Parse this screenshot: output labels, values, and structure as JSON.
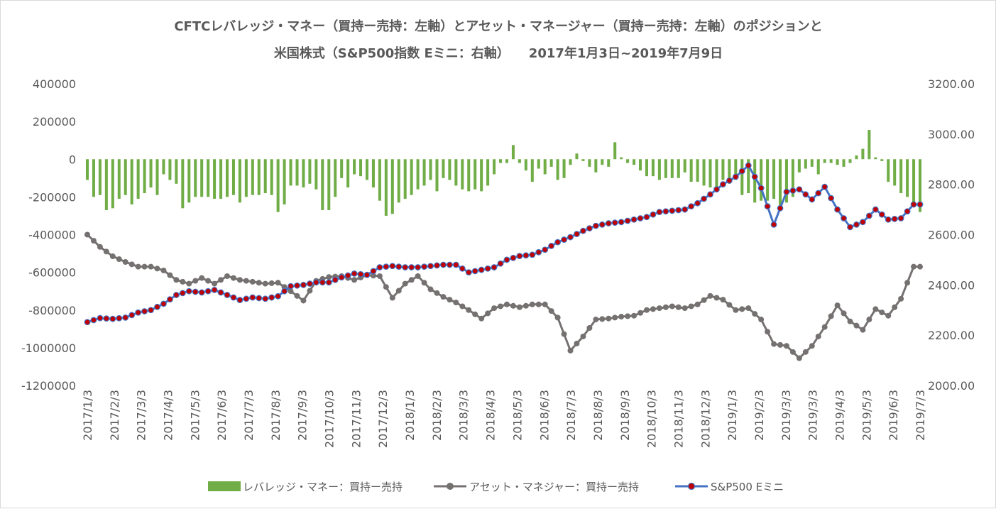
{
  "chart_data": {
    "type": "bar+line",
    "title_line1": "CFTCレバレッジ・マネー（買持ー売持：左軸）とアセット・マネージャー（買持ー売持：左軸）のポジションと",
    "title_line2": "米国株式（S&P500指数 Eミニ：右軸）　　2017年1月3日~2019年7月9日",
    "y_left_ticks": [
      "400000",
      "200000",
      "0",
      "-200000",
      "-400000",
      "-600000",
      "-800000",
      "-1000000",
      "-1200000"
    ],
    "ylim_left": [
      -1200000,
      400000
    ],
    "y_right_ticks": [
      "3200.00",
      "3000.00",
      "2800.00",
      "2600.00",
      "2400.00",
      "2200.00",
      "2000.00"
    ],
    "ylim_right": [
      2000,
      3200
    ],
    "x_tick_labels": [
      "2017/1/3",
      "2017/2/3",
      "2017/3/3",
      "2017/4/3",
      "2017/5/3",
      "2017/6/3",
      "2017/7/3",
      "2017/8/3",
      "2017/9/3",
      "2017/10/3",
      "2017/11/3",
      "2017/12/3",
      "2018/1/3",
      "2018/2/3",
      "2018/3/3",
      "2018/4/3",
      "2018/5/3",
      "2018/6/3",
      "2018/7/3",
      "2018/8/3",
      "2018/9/3",
      "2018/10/3",
      "2018/11/3",
      "2018/12/3",
      "2019/1/3",
      "2019/2/3",
      "2019/3/3",
      "2019/3/3",
      "2019/4/3",
      "2019/5/3",
      "2019/6/3",
      "2019/7/3"
    ],
    "n_points": 132,
    "series": [
      {
        "name": "レバレッジ・マネー：買持ー売持",
        "kind": "bar",
        "axis": "left",
        "color": "#70ad47",
        "anchors": [
          [
            0,
            -110000
          ],
          [
            1,
            -200000
          ],
          [
            2,
            -190000
          ],
          [
            3,
            -270000
          ],
          [
            4,
            -260000
          ],
          [
            5,
            -210000
          ],
          [
            6,
            -190000
          ],
          [
            7,
            -240000
          ],
          [
            8,
            -210000
          ],
          [
            9,
            -180000
          ],
          [
            10,
            -150000
          ],
          [
            11,
            -190000
          ],
          [
            12,
            -80000
          ],
          [
            13,
            -110000
          ],
          [
            14,
            -130000
          ],
          [
            15,
            -260000
          ],
          [
            16,
            -230000
          ],
          [
            17,
            -200000
          ],
          [
            18,
            -200000
          ],
          [
            19,
            -200000
          ],
          [
            20,
            -210000
          ],
          [
            21,
            -210000
          ],
          [
            22,
            -200000
          ],
          [
            23,
            -190000
          ],
          [
            24,
            -230000
          ],
          [
            25,
            -200000
          ],
          [
            26,
            -190000
          ],
          [
            27,
            -190000
          ],
          [
            28,
            -180000
          ],
          [
            29,
            -190000
          ],
          [
            30,
            -280000
          ],
          [
            31,
            -240000
          ],
          [
            32,
            -140000
          ],
          [
            33,
            -140000
          ],
          [
            34,
            -150000
          ],
          [
            35,
            -130000
          ],
          [
            36,
            -160000
          ],
          [
            37,
            -270000
          ],
          [
            38,
            -270000
          ],
          [
            39,
            -200000
          ],
          [
            40,
            -100000
          ],
          [
            41,
            -150000
          ],
          [
            42,
            -80000
          ],
          [
            43,
            -90000
          ],
          [
            44,
            -110000
          ],
          [
            45,
            -150000
          ],
          [
            46,
            -220000
          ],
          [
            47,
            -300000
          ],
          [
            48,
            -290000
          ],
          [
            49,
            -230000
          ],
          [
            50,
            -210000
          ],
          [
            51,
            -190000
          ],
          [
            52,
            -160000
          ],
          [
            53,
            -140000
          ],
          [
            54,
            -110000
          ],
          [
            55,
            -170000
          ],
          [
            56,
            -100000
          ],
          [
            57,
            -110000
          ],
          [
            58,
            -140000
          ],
          [
            59,
            -160000
          ],
          [
            60,
            -170000
          ],
          [
            61,
            -160000
          ],
          [
            62,
            -170000
          ],
          [
            63,
            -140000
          ],
          [
            64,
            -80000
          ],
          [
            65,
            -20000
          ],
          [
            66,
            -20000
          ],
          [
            67,
            75000
          ],
          [
            68,
            -20000
          ],
          [
            69,
            -60000
          ],
          [
            70,
            -120000
          ],
          [
            71,
            -50000
          ],
          [
            72,
            -80000
          ],
          [
            73,
            -40000
          ],
          [
            74,
            -110000
          ],
          [
            75,
            -100000
          ],
          [
            76,
            -30000
          ],
          [
            77,
            30000
          ],
          [
            78,
            -10000
          ],
          [
            79,
            -40000
          ],
          [
            80,
            -70000
          ],
          [
            81,
            -30000
          ],
          [
            82,
            -40000
          ],
          [
            83,
            90000
          ],
          [
            84,
            10000
          ],
          [
            85,
            -20000
          ],
          [
            86,
            -30000
          ],
          [
            87,
            -60000
          ],
          [
            88,
            -90000
          ],
          [
            89,
            -90000
          ],
          [
            90,
            -110000
          ],
          [
            91,
            -100000
          ],
          [
            92,
            -100000
          ],
          [
            93,
            -100000
          ],
          [
            94,
            -70000
          ],
          [
            95,
            -120000
          ],
          [
            96,
            -120000
          ],
          [
            97,
            -140000
          ],
          [
            98,
            -150000
          ],
          [
            99,
            -170000
          ],
          [
            100,
            -110000
          ],
          [
            101,
            -130000
          ],
          [
            102,
            -110000
          ],
          [
            103,
            -190000
          ],
          [
            104,
            -180000
          ],
          [
            105,
            -230000
          ],
          [
            106,
            -220000
          ],
          [
            107,
            -220000
          ],
          [
            108,
            -210000
          ],
          [
            109,
            -250000
          ],
          [
            110,
            -230000
          ],
          [
            111,
            -200000
          ],
          [
            112,
            -70000
          ],
          [
            113,
            -50000
          ],
          [
            114,
            -40000
          ],
          [
            115,
            -80000
          ],
          [
            116,
            -20000
          ],
          [
            117,
            -20000
          ],
          [
            118,
            -30000
          ],
          [
            119,
            -40000
          ],
          [
            120,
            -20000
          ],
          [
            121,
            20000
          ],
          [
            122,
            55000
          ],
          [
            123,
            155000
          ],
          [
            124,
            10000
          ],
          [
            125,
            -10000
          ],
          [
            126,
            -120000
          ],
          [
            127,
            -140000
          ],
          [
            128,
            -180000
          ],
          [
            129,
            -200000
          ],
          [
            130,
            -230000
          ],
          [
            131,
            -280000
          ]
        ]
      },
      {
        "name": "アセット・マネジャー：買持ー売持",
        "kind": "line",
        "axis": "left",
        "color": "#767171",
        "anchors": [
          [
            0,
            -400000
          ],
          [
            2,
            -465000
          ],
          [
            4,
            -515000
          ],
          [
            6,
            -545000
          ],
          [
            8,
            -570000
          ],
          [
            10,
            -570000
          ],
          [
            12,
            -590000
          ],
          [
            14,
            -640000
          ],
          [
            16,
            -660000
          ],
          [
            18,
            -630000
          ],
          [
            20,
            -660000
          ],
          [
            22,
            -620000
          ],
          [
            24,
            -640000
          ],
          [
            26,
            -650000
          ],
          [
            28,
            -660000
          ],
          [
            30,
            -655000
          ],
          [
            32,
            -700000
          ],
          [
            34,
            -750000
          ],
          [
            36,
            -645000
          ],
          [
            38,
            -625000
          ],
          [
            40,
            -620000
          ],
          [
            42,
            -640000
          ],
          [
            44,
            -615000
          ],
          [
            46,
            -620000
          ],
          [
            48,
            -735000
          ],
          [
            50,
            -660000
          ],
          [
            52,
            -620000
          ],
          [
            54,
            -690000
          ],
          [
            56,
            -730000
          ],
          [
            58,
            -760000
          ],
          [
            60,
            -800000
          ],
          [
            62,
            -845000
          ],
          [
            64,
            -790000
          ],
          [
            66,
            -770000
          ],
          [
            68,
            -785000
          ],
          [
            70,
            -770000
          ],
          [
            72,
            -770000
          ],
          [
            74,
            -840000
          ],
          [
            76,
            -1015000
          ],
          [
            78,
            -940000
          ],
          [
            80,
            -850000
          ],
          [
            82,
            -845000
          ],
          [
            84,
            -835000
          ],
          [
            86,
            -830000
          ],
          [
            88,
            -800000
          ],
          [
            90,
            -790000
          ],
          [
            92,
            -780000
          ],
          [
            94,
            -790000
          ],
          [
            96,
            -770000
          ],
          [
            98,
            -725000
          ],
          [
            100,
            -745000
          ],
          [
            102,
            -800000
          ],
          [
            104,
            -790000
          ],
          [
            106,
            -850000
          ],
          [
            108,
            -980000
          ],
          [
            110,
            -990000
          ],
          [
            112,
            -1055000
          ],
          [
            114,
            -990000
          ],
          [
            116,
            -890000
          ],
          [
            118,
            -775000
          ],
          [
            120,
            -860000
          ],
          [
            122,
            -905000
          ],
          [
            124,
            -795000
          ],
          [
            126,
            -830000
          ],
          [
            128,
            -740000
          ],
          [
            130,
            -570000
          ]
        ]
      },
      {
        "name": "S&P500 Eミニ",
        "kind": "line-markers",
        "axis": "right",
        "color": "#4472c4",
        "marker": "#c00000",
        "anchors": [
          [
            0,
            2252
          ],
          [
            2,
            2268
          ],
          [
            4,
            2265
          ],
          [
            6,
            2270
          ],
          [
            8,
            2290
          ],
          [
            10,
            2300
          ],
          [
            12,
            2325
          ],
          [
            14,
            2360
          ],
          [
            16,
            2375
          ],
          [
            18,
            2370
          ],
          [
            20,
            2380
          ],
          [
            22,
            2360
          ],
          [
            24,
            2340
          ],
          [
            26,
            2350
          ],
          [
            28,
            2345
          ],
          [
            30,
            2355
          ],
          [
            32,
            2395
          ],
          [
            34,
            2400
          ],
          [
            36,
            2410
          ],
          [
            38,
            2410
          ],
          [
            40,
            2430
          ],
          [
            42,
            2445
          ],
          [
            44,
            2440
          ],
          [
            46,
            2470
          ],
          [
            48,
            2475
          ],
          [
            50,
            2470
          ],
          [
            52,
            2470
          ],
          [
            54,
            2475
          ],
          [
            56,
            2480
          ],
          [
            58,
            2480
          ],
          [
            60,
            2450
          ],
          [
            62,
            2460
          ],
          [
            64,
            2470
          ],
          [
            66,
            2500
          ],
          [
            68,
            2515
          ],
          [
            70,
            2520
          ],
          [
            72,
            2540
          ],
          [
            74,
            2570
          ],
          [
            76,
            2590
          ],
          [
            78,
            2615
          ],
          [
            80,
            2635
          ],
          [
            82,
            2645
          ],
          [
            84,
            2650
          ],
          [
            86,
            2660
          ],
          [
            88,
            2670
          ],
          [
            90,
            2690
          ],
          [
            92,
            2695
          ],
          [
            94,
            2700
          ],
          [
            96,
            2725
          ],
          [
            98,
            2760
          ],
          [
            100,
            2800
          ],
          [
            102,
            2830
          ],
          [
            104,
            2875
          ],
          [
            106,
            2785
          ],
          [
            108,
            2640
          ],
          [
            110,
            2770
          ],
          [
            112,
            2780
          ],
          [
            114,
            2740
          ],
          [
            116,
            2790
          ],
          [
            118,
            2700
          ],
          [
            120,
            2630
          ],
          [
            122,
            2650
          ],
          [
            124,
            2700
          ],
          [
            126,
            2660
          ],
          [
            128,
            2665
          ],
          [
            130,
            2720
          ]
        ]
      }
    ],
    "legend": [
      {
        "label": "レバレッジ・マネー：買持ー売持",
        "swatch": "bar"
      },
      {
        "label": "アセット・マネジャー：買持ー売持",
        "swatch": "line"
      },
      {
        "label": "S&P500 Eミニ",
        "swatch": "line-markers"
      }
    ],
    "legend_position": "bottom",
    "grid": false
  }
}
